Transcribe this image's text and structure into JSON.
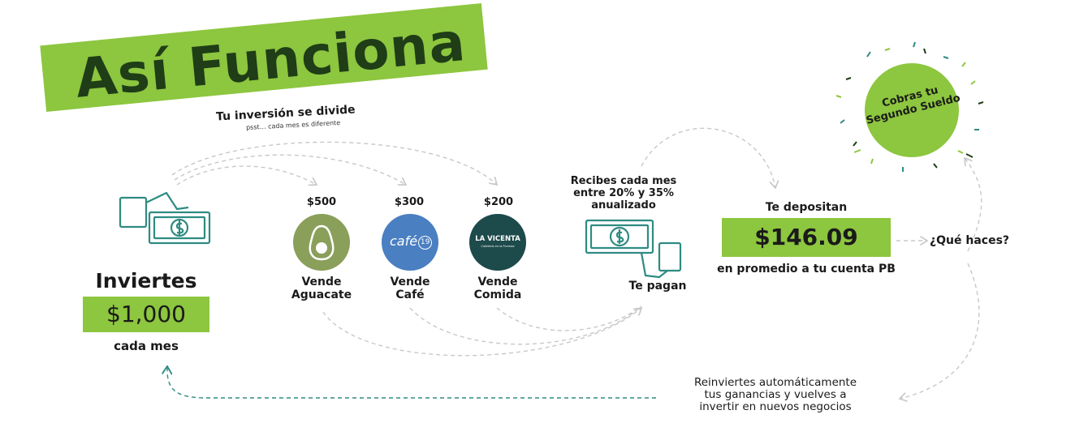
{
  "title": "Así Funciona",
  "split": {
    "title": "Tu inversión se divide",
    "subtitle": "psst… cada mes es diferente"
  },
  "invest": {
    "label": "Inviertes",
    "amount": "$1,000",
    "frequency": "cada mes"
  },
  "businesses": [
    {
      "amount": "$500",
      "label_line1": "Vende",
      "label_line2": "Aguacate",
      "icon": "avocado-icon",
      "color": "#8a9f5a"
    },
    {
      "amount": "$300",
      "label_line1": "Vende",
      "label_line2": "Café",
      "icon": "cafe-19-logo",
      "logo_text": "café",
      "logo_num": "19",
      "color": "#4a7fc1"
    },
    {
      "amount": "$200",
      "label_line1": "Vende",
      "label_line2": "Comida",
      "icon": "la-vicenta-logo",
      "logo_text": "LA VICENTA",
      "logo_sub": "Cafetería en la Floresta",
      "color": "#1d4a4a"
    }
  ],
  "returns": {
    "line1": "Recibes cada mes",
    "line2": "entre 20% y 35%",
    "line3": "anualizado",
    "paid": "Te pagan"
  },
  "deposit": {
    "label": "Te depositan",
    "amount": "$146.09",
    "note": "en promedio a tu cuenta PB"
  },
  "question": "¿Qué haces?",
  "celebrate": {
    "line1": "Cobras tu",
    "line2": "Segundo Sueldo"
  },
  "reinvest": {
    "line1": "Reinviertes  automáticamente",
    "line2": "tus ganancias y vuelves a",
    "line3": "invertir en nuevos negocios"
  },
  "colors": {
    "accent": "#8dc63f",
    "dark_green": "#1f3d17",
    "teal": "#2e8b82",
    "dash": "#c8c8c8"
  }
}
